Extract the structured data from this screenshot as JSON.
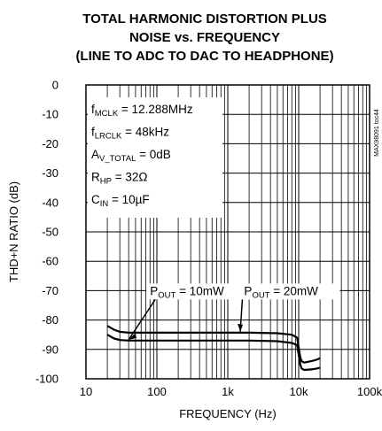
{
  "chart_data": {
    "type": "line",
    "title": [
      "TOTAL HARMONIC DISTORTION PLUS",
      "NOISE vs. FREQUENCY",
      "(LINE TO ADC TO DAC TO HEADPHONE)"
    ],
    "xlabel": "FREQUENCY (Hz)",
    "ylabel": "THD+N RATIO (dB)",
    "x_scale": "log",
    "xlim": [
      10,
      100000
    ],
    "ylim": [
      -100,
      0
    ],
    "x_ticks": [
      10,
      100,
      1000,
      10000,
      100000
    ],
    "x_tick_labels": [
      "10",
      "100",
      "1k",
      "10k",
      "100k"
    ],
    "y_ticks": [
      0,
      -10,
      -20,
      -30,
      -40,
      -50,
      -60,
      -70,
      -80,
      -90,
      -100
    ],
    "y_tick_labels": [
      "0",
      "-10",
      "-20",
      "-30",
      "-40",
      "-50",
      "-60",
      "-70",
      "-80",
      "-90",
      "-100"
    ],
    "grid": true,
    "series": [
      {
        "name": "POUT = 10mW",
        "x": [
          20,
          25,
          30,
          40,
          50,
          70,
          100,
          200,
          500,
          1000,
          2000,
          5000,
          8000,
          9500,
          10500,
          11000,
          12000,
          15000,
          18000,
          20000
        ],
        "y": [
          -85,
          -86.3,
          -86.8,
          -87,
          -87,
          -87,
          -87,
          -87,
          -87,
          -87,
          -87,
          -87.2,
          -87.8,
          -88.5,
          -95,
          -96.5,
          -97,
          -96.8,
          -96.5,
          -96.2
        ]
      },
      {
        "name": "POUT = 20mW",
        "x": [
          20,
          25,
          30,
          40,
          50,
          70,
          100,
          200,
          500,
          1000,
          2000,
          5000,
          8000,
          9500,
          10500,
          11000,
          12000,
          15000,
          18000,
          20000
        ],
        "y": [
          -82,
          -83.3,
          -84,
          -84.3,
          -84.3,
          -84.3,
          -84.3,
          -84.3,
          -84.3,
          -84.3,
          -84.3,
          -84.5,
          -85,
          -86,
          -92.5,
          -94,
          -94.5,
          -94,
          -93.5,
          -93
        ]
      }
    ],
    "annotations": [
      {
        "text": "POUT = 10mW",
        "x": 80,
        "y": -71.5,
        "points_to": "POUT = 10mW"
      },
      {
        "text": "POUT = 20mW",
        "x": 1700,
        "y": -71.5,
        "points_to": "POUT = 20mW"
      }
    ],
    "conditions": [
      {
        "pre": "f",
        "sub": "MCLK",
        "post": " = 12.288MHz"
      },
      {
        "pre": "f",
        "sub": "LRCLK",
        "post": " = 48kHz"
      },
      {
        "pre": "A",
        "sub": "V_TOTAL",
        "post": " = 0dB"
      },
      {
        "pre": "R",
        "sub": "HP",
        "post": " = 32Ω"
      },
      {
        "pre": "C",
        "sub": "IN",
        "post": " = 10µF"
      }
    ],
    "legend_labels": [
      {
        "pre": "P",
        "sub": "OUT",
        "post": " = 10mW"
      },
      {
        "pre": "P",
        "sub": "OUT",
        "post": " = 20mW"
      }
    ],
    "figure_code": "MAX98091 toc44"
  }
}
